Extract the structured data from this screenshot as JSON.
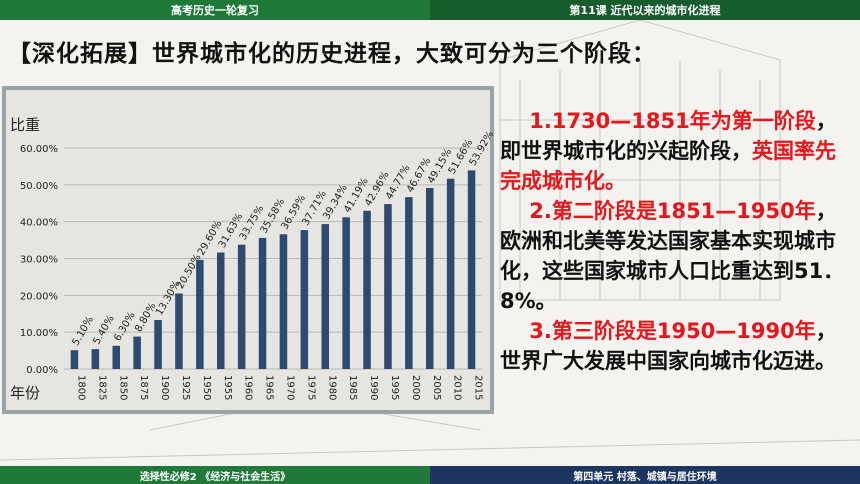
{
  "header": {
    "left_title": "高考历史一轮复习",
    "right_title": "第11课    近代以来的城市化进程"
  },
  "heading": "【深化拓展】世界城市化的历史进程，大致可分为三个阶段：",
  "body": {
    "p1_red": "1.1730—1851年为第一阶段",
    "p1_black": "，即世界城市化的兴起阶段，",
    "p1_red2": "英国率先完成城市化。",
    "p2_red": "2.第二阶段是1851—1950年",
    "p2_black": "，欧洲和北美等发达国家基本实现城市化，这些国家城市人口比重达到51．8%。",
    "p3_red": "3.第三阶段是1950—1990年",
    "p3_black": "，世界广大发展中国家向城市化迈进。"
  },
  "footer": {
    "left": "选择性必修2  《经济与社会生活》",
    "right": "第四单元    村落、城镇与居住环境"
  },
  "chart_data": {
    "type": "bar",
    "ylabel": "比重",
    "xlabel": "年份",
    "ylim": [
      0,
      60
    ],
    "yticks": [
      "0.00%",
      "10.00%",
      "20.00%",
      "30.00%",
      "40.00%",
      "50.00%",
      "60.00%"
    ],
    "categories": [
      "1800",
      "1825",
      "1850",
      "1875",
      "1900",
      "1925",
      "1950",
      "1955",
      "1960",
      "1965",
      "1970",
      "1975",
      "1980",
      "1985",
      "1990",
      "1995",
      "2000",
      "2005",
      "2010",
      "2015"
    ],
    "values": [
      5.1,
      5.4,
      6.3,
      8.8,
      13.3,
      20.5,
      29.6,
      31.63,
      33.75,
      35.58,
      36.59,
      37.71,
      39.34,
      41.19,
      42.96,
      44.77,
      46.67,
      49.15,
      51.66,
      53.92
    ],
    "labels": [
      "5.10%",
      "5.40%",
      "6.30%",
      "8.80%",
      "13.30%",
      "20.50%",
      "29.60%",
      "31.63%",
      "33.75%",
      "35.58%",
      "36.59%",
      "37.71%",
      "39.34%",
      "41.19%",
      "42.96%",
      "44.77%",
      "46.67%",
      "49.15%",
      "51.66%",
      "53.92%"
    ],
    "bar_color": "#2e4a6e"
  }
}
